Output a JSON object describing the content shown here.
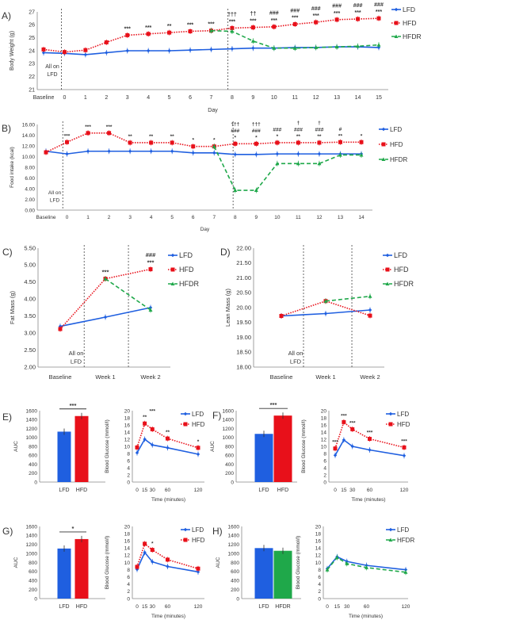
{
  "colors": {
    "LFD": "#1f5fe0",
    "HFD": "#e8101a",
    "HFDR": "#1fa84a",
    "axis": "#888888"
  },
  "series_styles": {
    "LFD": {
      "line": "solid",
      "marker": "diamond"
    },
    "HFD": {
      "line": "dotted",
      "marker": "square"
    },
    "HFDR": {
      "line": "dashed",
      "marker": "triangle"
    }
  },
  "chart_data": [
    {
      "panel_label": "A)",
      "type": "line",
      "ylabel": "Body Weight (g)",
      "xlabel": "Day",
      "categories": [
        "Baseline",
        "0",
        "1",
        "2",
        "3",
        "4",
        "5",
        "6",
        "7",
        "8",
        "9",
        "10",
        "11",
        "12",
        "13",
        "14",
        "15"
      ],
      "ylim": [
        21,
        27
      ],
      "yticks": [
        21,
        22,
        23,
        24,
        25,
        26,
        27
      ],
      "note": "All on LFD",
      "legend": "right",
      "series": [
        {
          "name": "LFD",
          "values": [
            23.85,
            23.8,
            23.7,
            23.85,
            24.0,
            24.0,
            24.0,
            24.05,
            24.1,
            24.15,
            24.2,
            24.2,
            24.25,
            24.25,
            24.3,
            24.3,
            24.25
          ]
        },
        {
          "name": "HFD",
          "values": [
            24.1,
            23.9,
            24.05,
            24.65,
            25.2,
            25.3,
            25.4,
            25.5,
            25.55,
            25.75,
            25.8,
            25.85,
            26.05,
            26.2,
            26.4,
            26.45,
            26.5
          ]
        },
        {
          "name": "HFDR",
          "values": [
            null,
            null,
            null,
            null,
            null,
            null,
            null,
            null,
            25.55,
            25.5,
            24.75,
            24.2,
            24.2,
            24.25,
            24.3,
            24.35,
            24.45
          ]
        }
      ],
      "annotations": [
        {
          "x": "3",
          "text": "***"
        },
        {
          "x": "4",
          "text": "***"
        },
        {
          "x": "5",
          "text": "**"
        },
        {
          "x": "6",
          "text": "***"
        },
        {
          "x": "7",
          "text": "***"
        },
        {
          "x": "8",
          "text": "†††\n***"
        },
        {
          "x": "9",
          "text": "††\n***"
        },
        {
          "x": "10",
          "text": "###\n***"
        },
        {
          "x": "11",
          "text": "###\n***"
        },
        {
          "x": "12",
          "text": "###\n***"
        },
        {
          "x": "13",
          "text": "###\n***"
        },
        {
          "x": "14",
          "text": "###\n***"
        },
        {
          "x": "15",
          "text": "###\n***"
        }
      ]
    },
    {
      "panel_label": "B)",
      "type": "line",
      "ylabel": "Food intake (kcal)",
      "xlabel": "Day",
      "categories": [
        "Baseline",
        "0",
        "1",
        "2",
        "3",
        "4",
        "5",
        "6",
        "7",
        "8",
        "9",
        "10",
        "11",
        "12",
        "13",
        "14"
      ],
      "ylim": [
        0,
        16
      ],
      "yticks": [
        "0.00",
        "2.00",
        "4.00",
        "6.00",
        "8.00",
        "10.00",
        "12.00",
        "14.00",
        "16.00"
      ],
      "note": "All on LFD",
      "legend": "right",
      "series": [
        {
          "name": "LFD",
          "values": [
            11.0,
            10.5,
            11.0,
            11.0,
            11.0,
            11.0,
            11.0,
            10.7,
            10.7,
            10.4,
            10.4,
            10.5,
            10.5,
            10.5,
            10.5,
            10.5
          ]
        },
        {
          "name": "HFD",
          "values": [
            10.8,
            12.7,
            14.4,
            14.4,
            12.6,
            12.6,
            12.6,
            11.9,
            11.9,
            12.4,
            12.4,
            12.6,
            12.6,
            12.6,
            12.7,
            12.7
          ]
        },
        {
          "name": "HFDR",
          "values": [
            null,
            null,
            null,
            null,
            null,
            null,
            null,
            null,
            11.9,
            3.7,
            3.7,
            8.7,
            8.7,
            8.7,
            10.3,
            10.3
          ]
        }
      ],
      "annotations": [
        {
          "x": "0",
          "text": "***"
        },
        {
          "x": "1",
          "text": "***"
        },
        {
          "x": "2",
          "text": "***"
        },
        {
          "x": "3",
          "text": "**"
        },
        {
          "x": "4",
          "text": "**"
        },
        {
          "x": "5",
          "text": "**"
        },
        {
          "x": "6",
          "text": "*"
        },
        {
          "x": "7",
          "text": "*"
        },
        {
          "x": "8",
          "text": "†††\n###\n*"
        },
        {
          "x": "9",
          "text": "†††\n###\n*"
        },
        {
          "x": "10",
          "text": "###\n*"
        },
        {
          "x": "11",
          "text": "†\n###\n**"
        },
        {
          "x": "12",
          "text": "†\n###\n**"
        },
        {
          "x": "13",
          "text": "#\n**"
        },
        {
          "x": "14",
          "text": "*"
        }
      ]
    },
    {
      "panel_label": "C)",
      "type": "line",
      "ylabel": "Fat Mass (g)",
      "xlabel": "",
      "categories": [
        "Baseline",
        "Week 1",
        "Week 2"
      ],
      "ylim": [
        2,
        5.5
      ],
      "yticks": [
        "2.00",
        "2.50",
        "3.00",
        "3.50",
        "4.00",
        "4.50",
        "5.00",
        "5.50"
      ],
      "note": "All on LFD",
      "legend": "right",
      "series": [
        {
          "name": "LFD",
          "values": [
            3.2,
            3.47,
            3.75
          ]
        },
        {
          "name": "HFD",
          "values": [
            3.12,
            4.6,
            4.88
          ]
        },
        {
          "name": "HFDR",
          "values": [
            null,
            4.6,
            3.68
          ]
        }
      ],
      "annotations": [
        {
          "x": "Week 1",
          "text": "***"
        },
        {
          "x": "Week 2",
          "text": "###\n***"
        }
      ]
    },
    {
      "panel_label": "D)",
      "type": "line",
      "ylabel": "Lean Mass (g)",
      "xlabel": "",
      "categories": [
        "Baseline",
        "Week 1",
        "Week 2"
      ],
      "ylim": [
        18,
        22
      ],
      "yticks": [
        "18.00",
        "18.50",
        "19.00",
        "19.50",
        "20.00",
        "20.50",
        "21.00",
        "21.50",
        "22.00"
      ],
      "note": "All on LFD",
      "legend": "right",
      "series": [
        {
          "name": "LFD",
          "values": [
            19.72,
            19.8,
            19.92
          ]
        },
        {
          "name": "HFD",
          "values": [
            19.72,
            20.22,
            19.73
          ]
        },
        {
          "name": "HFDR",
          "values": [
            null,
            20.22,
            20.38
          ]
        }
      ],
      "annotations": []
    },
    {
      "panel_label": "E)",
      "type": "bar",
      "ylabel": "AUC",
      "categories": [
        "LFD",
        "HFD"
      ],
      "values": [
        1130,
        1480
      ],
      "ylim": [
        0,
        1600
      ],
      "yticks": [
        0,
        200,
        400,
        600,
        800,
        1000,
        1200,
        1400,
        1600
      ],
      "significance": "***"
    },
    {
      "type": "line",
      "ylabel": "Blood Glucose (mmol/l)",
      "xlabel": "Time (minutes)",
      "x": [
        0,
        15,
        30,
        60,
        120
      ],
      "ylim": [
        0,
        20
      ],
      "yticks": [
        0,
        2,
        4,
        6,
        8,
        10,
        12,
        14,
        16,
        18,
        20
      ],
      "legend": "top-right",
      "series": [
        {
          "name": "LFD",
          "values": [
            8.2,
            12.0,
            10.4,
            9.6,
            7.8
          ]
        },
        {
          "name": "HFD",
          "values": [
            9.7,
            16.4,
            14.8,
            12.2,
            9.6
          ]
        }
      ],
      "annotations": [
        {
          "x": 15,
          "text": "**"
        },
        {
          "x": 30,
          "text": "***"
        },
        {
          "x": 60,
          "text": "**"
        },
        {
          "x": 120,
          "text": "*"
        }
      ]
    },
    {
      "panel_label": "F)",
      "type": "bar",
      "ylabel": "AUC",
      "categories": [
        "LFD",
        "HFD"
      ],
      "values": [
        1080,
        1490
      ],
      "ylim": [
        0,
        1600
      ],
      "yticks": [
        0,
        200,
        400,
        600,
        800,
        1000,
        1200,
        1400,
        1600
      ],
      "significance": "***"
    },
    {
      "type": "line",
      "ylabel": "Blood Glucose (mmol/l)",
      "xlabel": "Time (minutes)",
      "x": [
        0,
        15,
        30,
        60,
        120
      ],
      "ylim": [
        0,
        20
      ],
      "yticks": [
        0,
        2,
        4,
        6,
        8,
        10,
        12,
        14,
        16,
        18,
        20
      ],
      "legend": "top-right",
      "series": [
        {
          "name": "LFD",
          "values": [
            7.5,
            11.8,
            10.0,
            9.0,
            7.4
          ]
        },
        {
          "name": "HFD",
          "values": [
            9.4,
            16.8,
            14.8,
            12.1,
            9.7
          ]
        }
      ],
      "annotations": [
        {
          "x": 0,
          "text": "***"
        },
        {
          "x": 15,
          "text": "***"
        },
        {
          "x": 30,
          "text": "***"
        },
        {
          "x": 60,
          "text": "***"
        },
        {
          "x": 120,
          "text": "***"
        }
      ]
    },
    {
      "panel_label": "G)",
      "type": "bar",
      "ylabel": "AUC",
      "categories": [
        "LFD",
        "HFD"
      ],
      "values": [
        1110,
        1320
      ],
      "ylim": [
        0,
        1600
      ],
      "yticks": [
        0,
        200,
        400,
        600,
        800,
        1000,
        1200,
        1400,
        1600
      ],
      "significance": "*"
    },
    {
      "type": "line",
      "ylabel": "Blood Glucose (mmol/l)",
      "xlabel": "Time (minutes)",
      "x": [
        0,
        15,
        30,
        60,
        120
      ],
      "ylim": [
        0,
        20
      ],
      "yticks": [
        0,
        2,
        4,
        6,
        8,
        10,
        12,
        14,
        16,
        18,
        20
      ],
      "legend": "top-right",
      "series": [
        {
          "name": "LFD",
          "values": [
            8.1,
            12.8,
            10.2,
            8.9,
            7.4
          ]
        },
        {
          "name": "HFD",
          "values": [
            8.8,
            15.2,
            13.5,
            10.8,
            8.3
          ]
        }
      ],
      "annotations": [
        {
          "x": 30,
          "text": "*"
        }
      ]
    },
    {
      "panel_label": "H)",
      "type": "bar",
      "ylabel": "AUC",
      "categories": [
        "LFD",
        "HFDR"
      ],
      "values": [
        1120,
        1060
      ],
      "ylim": [
        0,
        1600
      ],
      "yticks": [
        0,
        200,
        400,
        600,
        800,
        1000,
        1200,
        1400,
        1600
      ],
      "significance": ""
    },
    {
      "type": "line",
      "ylabel": "Blood Glucose (mmol/l)",
      "xlabel": "Time (minutes)",
      "x": [
        0,
        15,
        30,
        60,
        120
      ],
      "ylim": [
        0,
        20
      ],
      "yticks": [
        0,
        2,
        4,
        6,
        8,
        10,
        12,
        14,
        16,
        18,
        20
      ],
      "legend": "top-right",
      "series": [
        {
          "name": "LFD",
          "values": [
            8.3,
            11.6,
            10.3,
            9.2,
            8.0
          ]
        },
        {
          "name": "HFDR",
          "values": [
            8.0,
            11.4,
            9.7,
            8.6,
            7.3
          ]
        }
      ],
      "annotations": []
    }
  ]
}
